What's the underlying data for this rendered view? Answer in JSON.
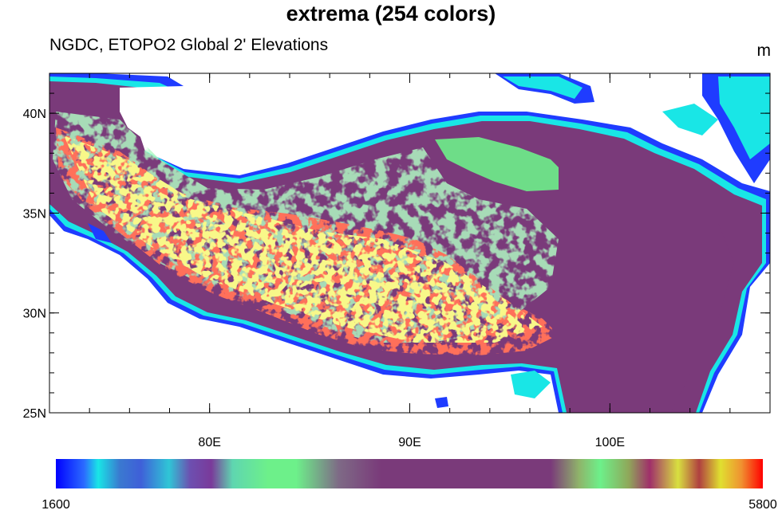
{
  "figure": {
    "title": "extrema (254 colors)",
    "subtitle": "NGDC, ETOPO2 Global 2' Elevations",
    "units": "m"
  },
  "map": {
    "lon_range": [
      72,
      108
    ],
    "lat_range": [
      25,
      42
    ],
    "lat_ticks": [
      {
        "value": 25,
        "label": "25N"
      },
      {
        "value": 30,
        "label": "30N"
      },
      {
        "value": 35,
        "label": "35N"
      },
      {
        "value": 40,
        "label": "40N"
      }
    ],
    "lon_ticks": [
      {
        "value": 80,
        "label": "80E"
      },
      {
        "value": 90,
        "label": "90E"
      },
      {
        "value": 100,
        "label": "100E"
      }
    ],
    "colors": {
      "low_blue": "#1f3cff",
      "cyan": "#19e6e6",
      "green": "#6df08a",
      "purple": "#7a3a7a",
      "red": "#ff2a1a",
      "yellow": "#f0f040"
    }
  },
  "colorbar": {
    "min_label": "1600",
    "max_label": "5800",
    "stops": [
      {
        "f": 0.0,
        "c": "#0000ff"
      },
      {
        "f": 0.04,
        "c": "#2b6bff"
      },
      {
        "f": 0.06,
        "c": "#19e6e6"
      },
      {
        "f": 0.09,
        "c": "#3a7ad0"
      },
      {
        "f": 0.12,
        "c": "#3f5fd8"
      },
      {
        "f": 0.16,
        "c": "#2fc6d6"
      },
      {
        "f": 0.19,
        "c": "#6d4fb0"
      },
      {
        "f": 0.22,
        "c": "#7a3a9a"
      },
      {
        "f": 0.25,
        "c": "#5fd6b0"
      },
      {
        "f": 0.3,
        "c": "#6df08a"
      },
      {
        "f": 0.34,
        "c": "#6df08a"
      },
      {
        "f": 0.4,
        "c": "#7e6a86"
      },
      {
        "f": 0.46,
        "c": "#7a3a7a"
      },
      {
        "f": 0.7,
        "c": "#7a3a7a"
      },
      {
        "f": 0.74,
        "c": "#8fb46a"
      },
      {
        "f": 0.77,
        "c": "#6df08a"
      },
      {
        "f": 0.81,
        "c": "#8fa85a"
      },
      {
        "f": 0.84,
        "c": "#a02f6a"
      },
      {
        "f": 0.88,
        "c": "#d8e040"
      },
      {
        "f": 0.91,
        "c": "#b04040"
      },
      {
        "f": 0.94,
        "c": "#e0e030"
      },
      {
        "f": 0.97,
        "c": "#f09030"
      },
      {
        "f": 1.0,
        "c": "#ff0000"
      }
    ]
  }
}
